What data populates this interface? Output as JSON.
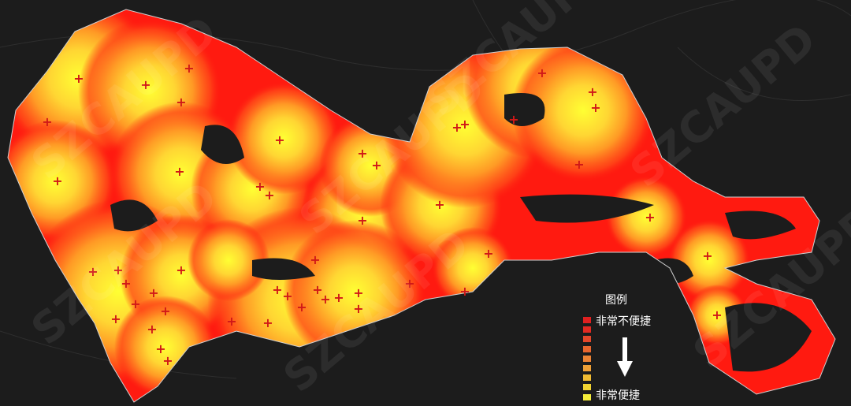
{
  "watermark": "SZCAUPD",
  "legend": {
    "title": "图例",
    "top_label": "非常不便捷",
    "bottom_label": "非常便捷",
    "arrow_icon": "down-arrow-icon",
    "colors": [
      "#e02020",
      "#e22a22",
      "#e4472a",
      "#e8662e",
      "#ec8334",
      "#eea036",
      "#f0bb32",
      "#f2d432",
      "#f4ec3a"
    ]
  },
  "colors": {
    "background": "#1c1c1c",
    "least_convenient": "#ff1a10",
    "most_convenient": "#ffff33",
    "marker": "#d01818"
  }
}
